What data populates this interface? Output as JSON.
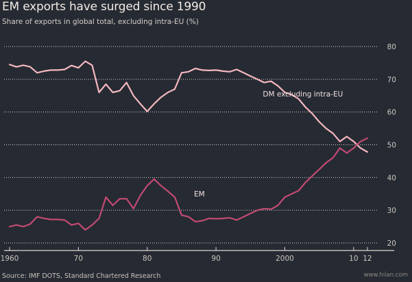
{
  "chart_data": {
    "type": "line",
    "title": "EM exports have surged since 1990",
    "subtitle": "Share of exports in global total, excluding intra-EU (%)",
    "source": "Source: IMF DOTS, Standard Chartered Research",
    "watermark": "www.hiian.com",
    "ylim": [
      20,
      80
    ],
    "yticks": [
      20,
      30,
      40,
      50,
      60,
      70,
      80
    ],
    "xlim": [
      1960,
      2014
    ],
    "xticks": [
      {
        "value": 1960,
        "label": "1960"
      },
      {
        "value": 1970,
        "label": "70"
      },
      {
        "value": 1980,
        "label": "80"
      },
      {
        "value": 1990,
        "label": "90"
      },
      {
        "value": 2000,
        "label": "2000"
      },
      {
        "value": 2010,
        "label": "10"
      },
      {
        "value": 2012,
        "label": "12"
      }
    ],
    "grid": true,
    "series": [
      {
        "name": "DM excluding intra-EU",
        "color": "#f5b8bf",
        "x": [
          1960,
          1961,
          1962,
          1963,
          1964,
          1965,
          1966,
          1967,
          1968,
          1969,
          1970,
          1971,
          1972,
          1973,
          1974,
          1975,
          1976,
          1977,
          1978,
          1979,
          1980,
          1981,
          1982,
          1983,
          1984,
          1985,
          1986,
          1987,
          1988,
          1989,
          1990,
          1991,
          1992,
          1993,
          1994,
          1995,
          1996,
          1997,
          1998,
          1999,
          2000,
          2001,
          2002,
          2003,
          2004,
          2005,
          2006,
          2007,
          2008,
          2009,
          2010,
          2011,
          2012
        ],
        "values": [
          74.5,
          73.8,
          74.3,
          73.8,
          72.0,
          72.5,
          72.8,
          72.8,
          73.0,
          74.2,
          73.5,
          75.5,
          74.3,
          66.0,
          68.5,
          66.0,
          66.5,
          69.0,
          65.0,
          62.5,
          60.2,
          62.5,
          64.5,
          66.0,
          67.0,
          72.0,
          72.3,
          73.3,
          72.8,
          72.7,
          72.8,
          72.5,
          72.3,
          73.0,
          72.0,
          71.0,
          70.0,
          69.0,
          69.4,
          68.0,
          66.0,
          65.3,
          64.0,
          61.5,
          59.5,
          57.0,
          55.0,
          53.5,
          51.0,
          52.5,
          51.0,
          49.0,
          47.8
        ]
      },
      {
        "name": "EM",
        "color": "#c24b72",
        "x": [
          1960,
          1961,
          1962,
          1963,
          1964,
          1965,
          1966,
          1967,
          1968,
          1969,
          1970,
          1971,
          1972,
          1973,
          1974,
          1975,
          1976,
          1977,
          1978,
          1979,
          1980,
          1981,
          1982,
          1983,
          1984,
          1985,
          1986,
          1987,
          1988,
          1989,
          1990,
          1991,
          1992,
          1993,
          1994,
          1995,
          1996,
          1997,
          1998,
          1999,
          2000,
          2001,
          2002,
          2003,
          2004,
          2005,
          2006,
          2007,
          2008,
          2009,
          2010,
          2011,
          2012
        ],
        "values": [
          25.0,
          25.5,
          25.0,
          25.8,
          28.0,
          27.5,
          27.2,
          27.2,
          27.0,
          25.5,
          26.0,
          24.0,
          25.5,
          27.5,
          34.0,
          31.5,
          33.5,
          33.5,
          30.5,
          34.5,
          37.5,
          39.5,
          37.5,
          35.8,
          34.0,
          28.5,
          28.0,
          26.5,
          26.8,
          27.5,
          27.4,
          27.5,
          27.7,
          27.0,
          28.0,
          29.0,
          30.0,
          30.5,
          30.3,
          31.5,
          34.0,
          35.0,
          36.0,
          38.5,
          40.5,
          42.5,
          44.5,
          46.0,
          49.0,
          47.5,
          49.0,
          51.0,
          52.0
        ]
      }
    ],
    "annotations": [
      {
        "text": "DM excluding intra-EU",
        "x": 1996.8,
        "y": 64.7,
        "color": "#f3dfe2"
      },
      {
        "text": "EM",
        "x": 1986.8,
        "y": 34.2,
        "color": "#f3dfe2"
      }
    ]
  }
}
